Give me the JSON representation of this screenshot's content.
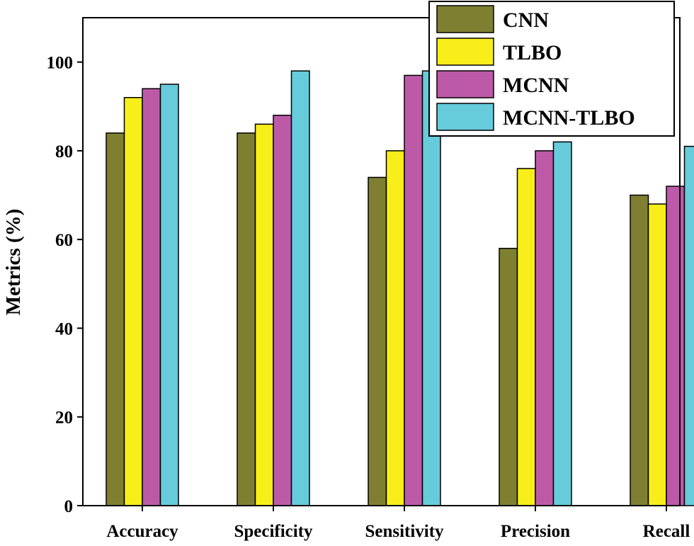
{
  "chart_data": {
    "type": "bar",
    "title": "",
    "xlabel": "",
    "ylabel": "Metrics (%)",
    "ylim": [
      0,
      110
    ],
    "yticks": [
      0,
      20,
      40,
      60,
      80,
      100
    ],
    "grid": false,
    "legend_position": "top-right",
    "categories": [
      "Accuracy",
      "Specificity",
      "Sensitivity",
      "Precision",
      "Recall"
    ],
    "series": [
      {
        "name": "CNN",
        "color": "#7f7f32",
        "values": [
          84,
          84,
          74,
          58,
          70
        ]
      },
      {
        "name": "TLBO",
        "color": "#f7ee1a",
        "values": [
          92,
          86,
          80,
          76,
          68
        ]
      },
      {
        "name": "MCNN",
        "color": "#bd5aa8",
        "values": [
          94,
          88,
          97,
          80,
          72
        ]
      },
      {
        "name": "MCNN-TLBO",
        "color": "#66cbdb",
        "values": [
          95,
          98,
          98,
          82,
          81
        ]
      }
    ]
  }
}
